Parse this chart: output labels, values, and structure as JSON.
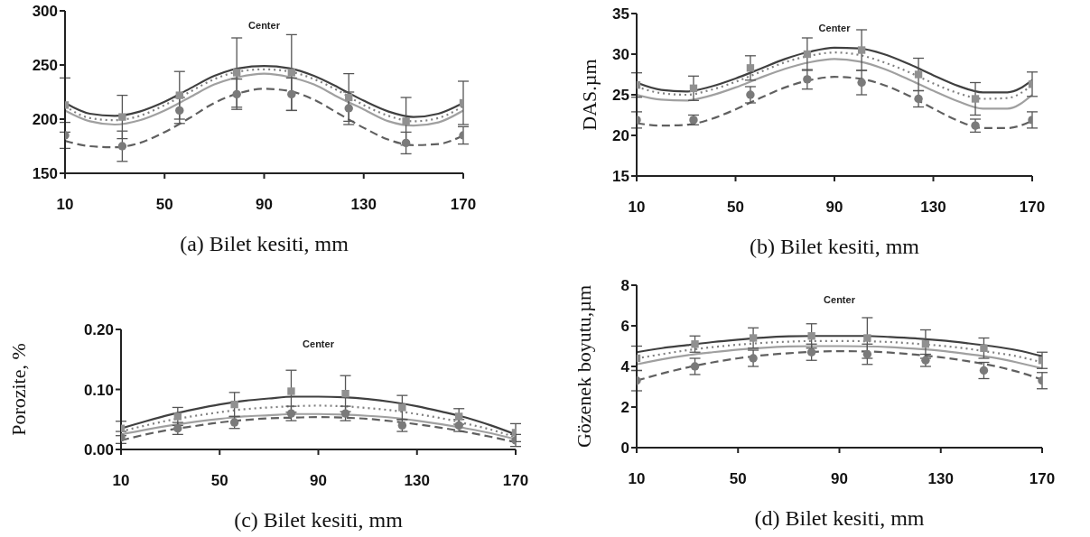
{
  "chart_data": [
    {
      "type": "line",
      "xlabel": "(a) Bilet kesiti, mm",
      "xlim": [
        10,
        170
      ],
      "xticks": [
        10,
        50,
        90,
        130,
        170
      ],
      "ylim": [
        150,
        300
      ],
      "yticks": [
        150,
        200,
        250,
        300
      ],
      "grid": false,
      "legend": false,
      "annotations": [
        "Center"
      ],
      "series": [
        {
          "type": "line",
          "color": "#404040",
          "line_style": "solid",
          "marker": "none",
          "x": [
            10,
            20,
            30,
            40,
            50,
            60,
            70,
            80,
            90,
            100,
            110,
            120,
            130,
            140,
            150,
            160,
            170
          ],
          "values": [
            215,
            205,
            203,
            207,
            216,
            228,
            240,
            247,
            249,
            247,
            240,
            229,
            217,
            207,
            202,
            205,
            215
          ]
        },
        {
          "type": "line",
          "color": "#808080",
          "line_style": "dotted",
          "marker": "none",
          "x": [
            10,
            20,
            30,
            40,
            50,
            60,
            70,
            80,
            90,
            100,
            110,
            120,
            130,
            140,
            150,
            160,
            170
          ],
          "values": [
            212,
            201,
            199,
            203,
            213,
            225,
            237,
            244,
            246,
            244,
            237,
            226,
            213,
            203,
            198,
            201,
            212
          ]
        },
        {
          "type": "line",
          "color": "#a0a0a0",
          "line_style": "solid",
          "marker": "none",
          "x": [
            10,
            20,
            30,
            40,
            50,
            60,
            70,
            80,
            90,
            100,
            110,
            120,
            130,
            140,
            150,
            160,
            170
          ],
          "values": [
            208,
            198,
            195,
            199,
            208,
            220,
            232,
            239,
            242,
            239,
            232,
            220,
            209,
            198,
            194,
            197,
            208
          ]
        },
        {
          "type": "line",
          "color": "#606060",
          "line_style": "dashed",
          "marker": "none",
          "x": [
            10,
            20,
            30,
            40,
            50,
            60,
            70,
            80,
            90,
            100,
            110,
            120,
            130,
            140,
            150,
            160,
            170
          ],
          "values": [
            180,
            175,
            174,
            178,
            188,
            201,
            215,
            224,
            228,
            226,
            218,
            205,
            192,
            181,
            176,
            177,
            185
          ]
        },
        {
          "type": "scatter",
          "color": "#909090",
          "marker": "square",
          "x": [
            10,
            33,
            56,
            79,
            101,
            124,
            147,
            170
          ],
          "values": [
            213,
            202,
            222,
            243,
            243,
            220,
            198,
            215
          ],
          "errors": [
            25,
            20,
            22,
            32,
            35,
            22,
            22,
            20
          ]
        },
        {
          "type": "scatter",
          "color": "#7a7a7a",
          "marker": "circle",
          "x": [
            10,
            33,
            56,
            79,
            101,
            124,
            147,
            170
          ],
          "values": [
            185,
            175,
            208,
            223,
            223,
            210,
            178,
            185
          ],
          "errors": [
            12,
            14,
            12,
            14,
            15,
            15,
            10,
            8
          ]
        }
      ]
    },
    {
      "type": "line",
      "xlabel": "(b) Bilet kesiti, mm",
      "ylabel": "DAS.µm",
      "xlim": [
        10,
        170
      ],
      "xticks": [
        10,
        50,
        90,
        130,
        170
      ],
      "ylim": [
        15,
        35
      ],
      "yticks": [
        15,
        20,
        25,
        30,
        35
      ],
      "grid": false,
      "legend": false,
      "annotations": [
        "Center"
      ],
      "series": [
        {
          "type": "line",
          "color": "#404040",
          "line_style": "solid",
          "marker": "none",
          "x": [
            10,
            20,
            30,
            40,
            50,
            60,
            70,
            80,
            90,
            100,
            110,
            120,
            130,
            140,
            150,
            160,
            170
          ],
          "values": [
            26.5,
            25.6,
            25.4,
            26.0,
            27.0,
            28.2,
            29.4,
            30.3,
            30.8,
            30.7,
            30.0,
            28.8,
            27.4,
            26.1,
            25.3,
            25.3,
            26.8
          ]
        },
        {
          "type": "line",
          "color": "#808080",
          "line_style": "dotted",
          "marker": "none",
          "x": [
            10,
            20,
            30,
            40,
            50,
            60,
            70,
            80,
            90,
            100,
            110,
            120,
            130,
            140,
            150,
            160,
            170
          ],
          "values": [
            26.0,
            25.2,
            25.0,
            25.6,
            26.6,
            27.8,
            29.0,
            29.8,
            30.2,
            29.9,
            29.0,
            27.8,
            26.4,
            25.2,
            24.5,
            24.6,
            26.2
          ]
        },
        {
          "type": "line",
          "color": "#a0a0a0",
          "line_style": "solid",
          "marker": "none",
          "x": [
            10,
            20,
            30,
            40,
            50,
            60,
            70,
            80,
            90,
            100,
            110,
            120,
            130,
            140,
            150,
            160,
            170
          ],
          "values": [
            25.0,
            24.4,
            24.3,
            24.9,
            25.9,
            27.1,
            28.2,
            29.0,
            29.4,
            29.1,
            28.2,
            26.9,
            25.5,
            24.2,
            23.3,
            23.3,
            25.0
          ]
        },
        {
          "type": "line",
          "color": "#606060",
          "line_style": "dashed",
          "marker": "none",
          "x": [
            10,
            20,
            30,
            40,
            50,
            60,
            70,
            80,
            90,
            100,
            110,
            120,
            130,
            140,
            150,
            160,
            170
          ],
          "values": [
            21.5,
            21.2,
            21.3,
            22.0,
            23.2,
            24.6,
            25.9,
            26.8,
            27.2,
            27.0,
            26.2,
            24.9,
            23.3,
            21.8,
            20.9,
            20.9,
            21.8
          ]
        },
        {
          "type": "scatter",
          "color": "#909090",
          "marker": "square",
          "x": [
            10,
            33,
            56,
            79,
            101,
            124,
            147,
            170
          ],
          "values": [
            26.2,
            25.8,
            28.3,
            30.0,
            30.5,
            27.5,
            24.5,
            26.3
          ],
          "errors": [
            1.5,
            1.5,
            1.5,
            2,
            2.5,
            2,
            2,
            1.5
          ]
        },
        {
          "type": "scatter",
          "color": "#7a7a7a",
          "marker": "circle",
          "x": [
            10,
            33,
            56,
            79,
            101,
            124,
            147,
            170
          ],
          "values": [
            21.9,
            21.9,
            25.0,
            26.9,
            26.5,
            24.5,
            21.2,
            21.9
          ],
          "errors": [
            1,
            0.6,
            1,
            1.2,
            1.5,
            1,
            0.8,
            1
          ]
        }
      ]
    },
    {
      "type": "line",
      "xlabel": "(c) Bilet kesiti, mm",
      "ylabel": "Porozite, %",
      "xlim": [
        10,
        170
      ],
      "xticks": [
        10,
        50,
        90,
        130,
        170
      ],
      "ylim": [
        0,
        0.2
      ],
      "yticks": [
        {
          "value": 0,
          "label": "0.00"
        },
        {
          "value": 0.1,
          "label": "0.10"
        },
        {
          "value": 0.2,
          "label": "0.20"
        }
      ],
      "grid": false,
      "legend": false,
      "annotations": [
        "Center"
      ],
      "series": [
        {
          "type": "line",
          "color": "#404040",
          "line_style": "solid",
          "marker": "none",
          "x": [
            10,
            20,
            30,
            40,
            50,
            60,
            70,
            80,
            90,
            100,
            110,
            120,
            130,
            140,
            150,
            160,
            170
          ],
          "values": [
            0.035,
            0.047,
            0.058,
            0.067,
            0.075,
            0.081,
            0.085,
            0.088,
            0.088,
            0.087,
            0.084,
            0.079,
            0.072,
            0.063,
            0.053,
            0.04,
            0.025
          ]
        },
        {
          "type": "line",
          "color": "#808080",
          "line_style": "dotted",
          "marker": "none",
          "x": [
            10,
            20,
            30,
            40,
            50,
            60,
            70,
            80,
            90,
            100,
            110,
            120,
            130,
            140,
            150,
            160,
            170
          ],
          "values": [
            0.03,
            0.04,
            0.049,
            0.056,
            0.062,
            0.067,
            0.07,
            0.072,
            0.073,
            0.072,
            0.069,
            0.065,
            0.059,
            0.052,
            0.043,
            0.033,
            0.02
          ]
        },
        {
          "type": "line",
          "color": "#a0a0a0",
          "line_style": "solid",
          "marker": "none",
          "x": [
            10,
            20,
            30,
            40,
            50,
            60,
            70,
            80,
            90,
            100,
            110,
            120,
            130,
            140,
            150,
            160,
            170
          ],
          "values": [
            0.025,
            0.033,
            0.04,
            0.046,
            0.051,
            0.055,
            0.057,
            0.059,
            0.059,
            0.058,
            0.056,
            0.053,
            0.048,
            0.042,
            0.035,
            0.027,
            0.017
          ]
        },
        {
          "type": "line",
          "color": "#606060",
          "line_style": "dashed",
          "marker": "none",
          "x": [
            10,
            20,
            30,
            40,
            50,
            60,
            70,
            80,
            90,
            100,
            110,
            120,
            130,
            140,
            150,
            160,
            170
          ],
          "values": [
            0.015,
            0.025,
            0.033,
            0.039,
            0.045,
            0.049,
            0.052,
            0.053,
            0.054,
            0.053,
            0.051,
            0.047,
            0.042,
            0.036,
            0.029,
            0.021,
            0.012
          ]
        },
        {
          "type": "scatter",
          "color": "#909090",
          "marker": "square",
          "x": [
            10,
            33,
            56,
            79,
            101,
            124,
            147,
            170
          ],
          "values": [
            0.035,
            0.055,
            0.075,
            0.097,
            0.093,
            0.07,
            0.055,
            0.028
          ],
          "errors": [
            0.012,
            0.015,
            0.02,
            0.035,
            0.03,
            0.02,
            0.013,
            0.015
          ]
        },
        {
          "type": "scatter",
          "color": "#7a7a7a",
          "marker": "circle",
          "x": [
            10,
            33,
            56,
            79,
            101,
            124,
            147,
            170
          ],
          "values": [
            0.02,
            0.035,
            0.045,
            0.06,
            0.06,
            0.04,
            0.04,
            0.015
          ],
          "errors": [
            0.01,
            0.01,
            0.01,
            0.012,
            0.012,
            0.01,
            0.01,
            0.01
          ]
        }
      ]
    },
    {
      "type": "line",
      "xlabel": "(d) Bilet kesiti, mm",
      "ylabel": "Gözenek boyutu,µm",
      "xlim": [
        10,
        170
      ],
      "xticks": [
        10,
        50,
        90,
        130,
        170
      ],
      "ylim": [
        0,
        8
      ],
      "yticks": [
        0,
        2,
        4,
        6,
        8
      ],
      "grid": false,
      "legend": false,
      "annotations": [
        "Center"
      ],
      "series": [
        {
          "type": "line",
          "color": "#404040",
          "line_style": "solid",
          "marker": "none",
          "x": [
            10,
            20,
            30,
            40,
            50,
            60,
            70,
            80,
            90,
            100,
            110,
            120,
            130,
            140,
            150,
            160,
            170
          ],
          "values": [
            4.7,
            4.9,
            5.05,
            5.2,
            5.32,
            5.42,
            5.48,
            5.5,
            5.5,
            5.5,
            5.45,
            5.38,
            5.28,
            5.15,
            5.0,
            4.8,
            4.5
          ]
        },
        {
          "type": "line",
          "color": "#808080",
          "line_style": "dotted",
          "marker": "none",
          "x": [
            10,
            20,
            30,
            40,
            50,
            60,
            70,
            80,
            90,
            100,
            110,
            120,
            130,
            140,
            150,
            160,
            170
          ],
          "values": [
            4.4,
            4.6,
            4.8,
            4.95,
            5.07,
            5.16,
            5.22,
            5.25,
            5.25,
            5.24,
            5.2,
            5.12,
            5.02,
            4.88,
            4.7,
            4.5,
            4.2
          ]
        },
        {
          "type": "line",
          "color": "#a0a0a0",
          "line_style": "solid",
          "marker": "none",
          "x": [
            10,
            20,
            30,
            40,
            50,
            60,
            70,
            80,
            90,
            100,
            110,
            120,
            130,
            140,
            150,
            160,
            170
          ],
          "values": [
            4.1,
            4.35,
            4.55,
            4.7,
            4.83,
            4.92,
            4.98,
            5.0,
            5.0,
            4.99,
            4.95,
            4.87,
            4.77,
            4.62,
            4.45,
            4.2,
            3.9
          ]
        },
        {
          "type": "line",
          "color": "#606060",
          "line_style": "dashed",
          "marker": "none",
          "x": [
            10,
            20,
            30,
            40,
            50,
            60,
            70,
            80,
            90,
            100,
            110,
            120,
            130,
            140,
            150,
            160,
            170
          ],
          "values": [
            3.3,
            3.65,
            3.95,
            4.2,
            4.4,
            4.55,
            4.65,
            4.72,
            4.75,
            4.74,
            4.68,
            4.58,
            4.45,
            4.27,
            4.05,
            3.75,
            3.35
          ]
        },
        {
          "type": "scatter",
          "color": "#909090",
          "marker": "square",
          "x": [
            10,
            33,
            56,
            79,
            101,
            124,
            147,
            170
          ],
          "values": [
            4.4,
            5.1,
            5.4,
            5.5,
            5.4,
            5.1,
            4.9,
            4.3
          ],
          "errors": [
            0.6,
            0.4,
            0.5,
            0.6,
            1.0,
            0.7,
            0.5,
            0.4
          ]
        },
        {
          "type": "scatter",
          "color": "#7a7a7a",
          "marker": "circle",
          "x": [
            10,
            33,
            56,
            79,
            101,
            124,
            147,
            170
          ],
          "values": [
            3.3,
            4.0,
            4.4,
            4.7,
            4.6,
            4.3,
            3.8,
            3.3
          ],
          "errors": [
            0.5,
            0.4,
            0.4,
            0.4,
            0.5,
            0.3,
            0.4,
            0.4
          ]
        }
      ]
    }
  ]
}
